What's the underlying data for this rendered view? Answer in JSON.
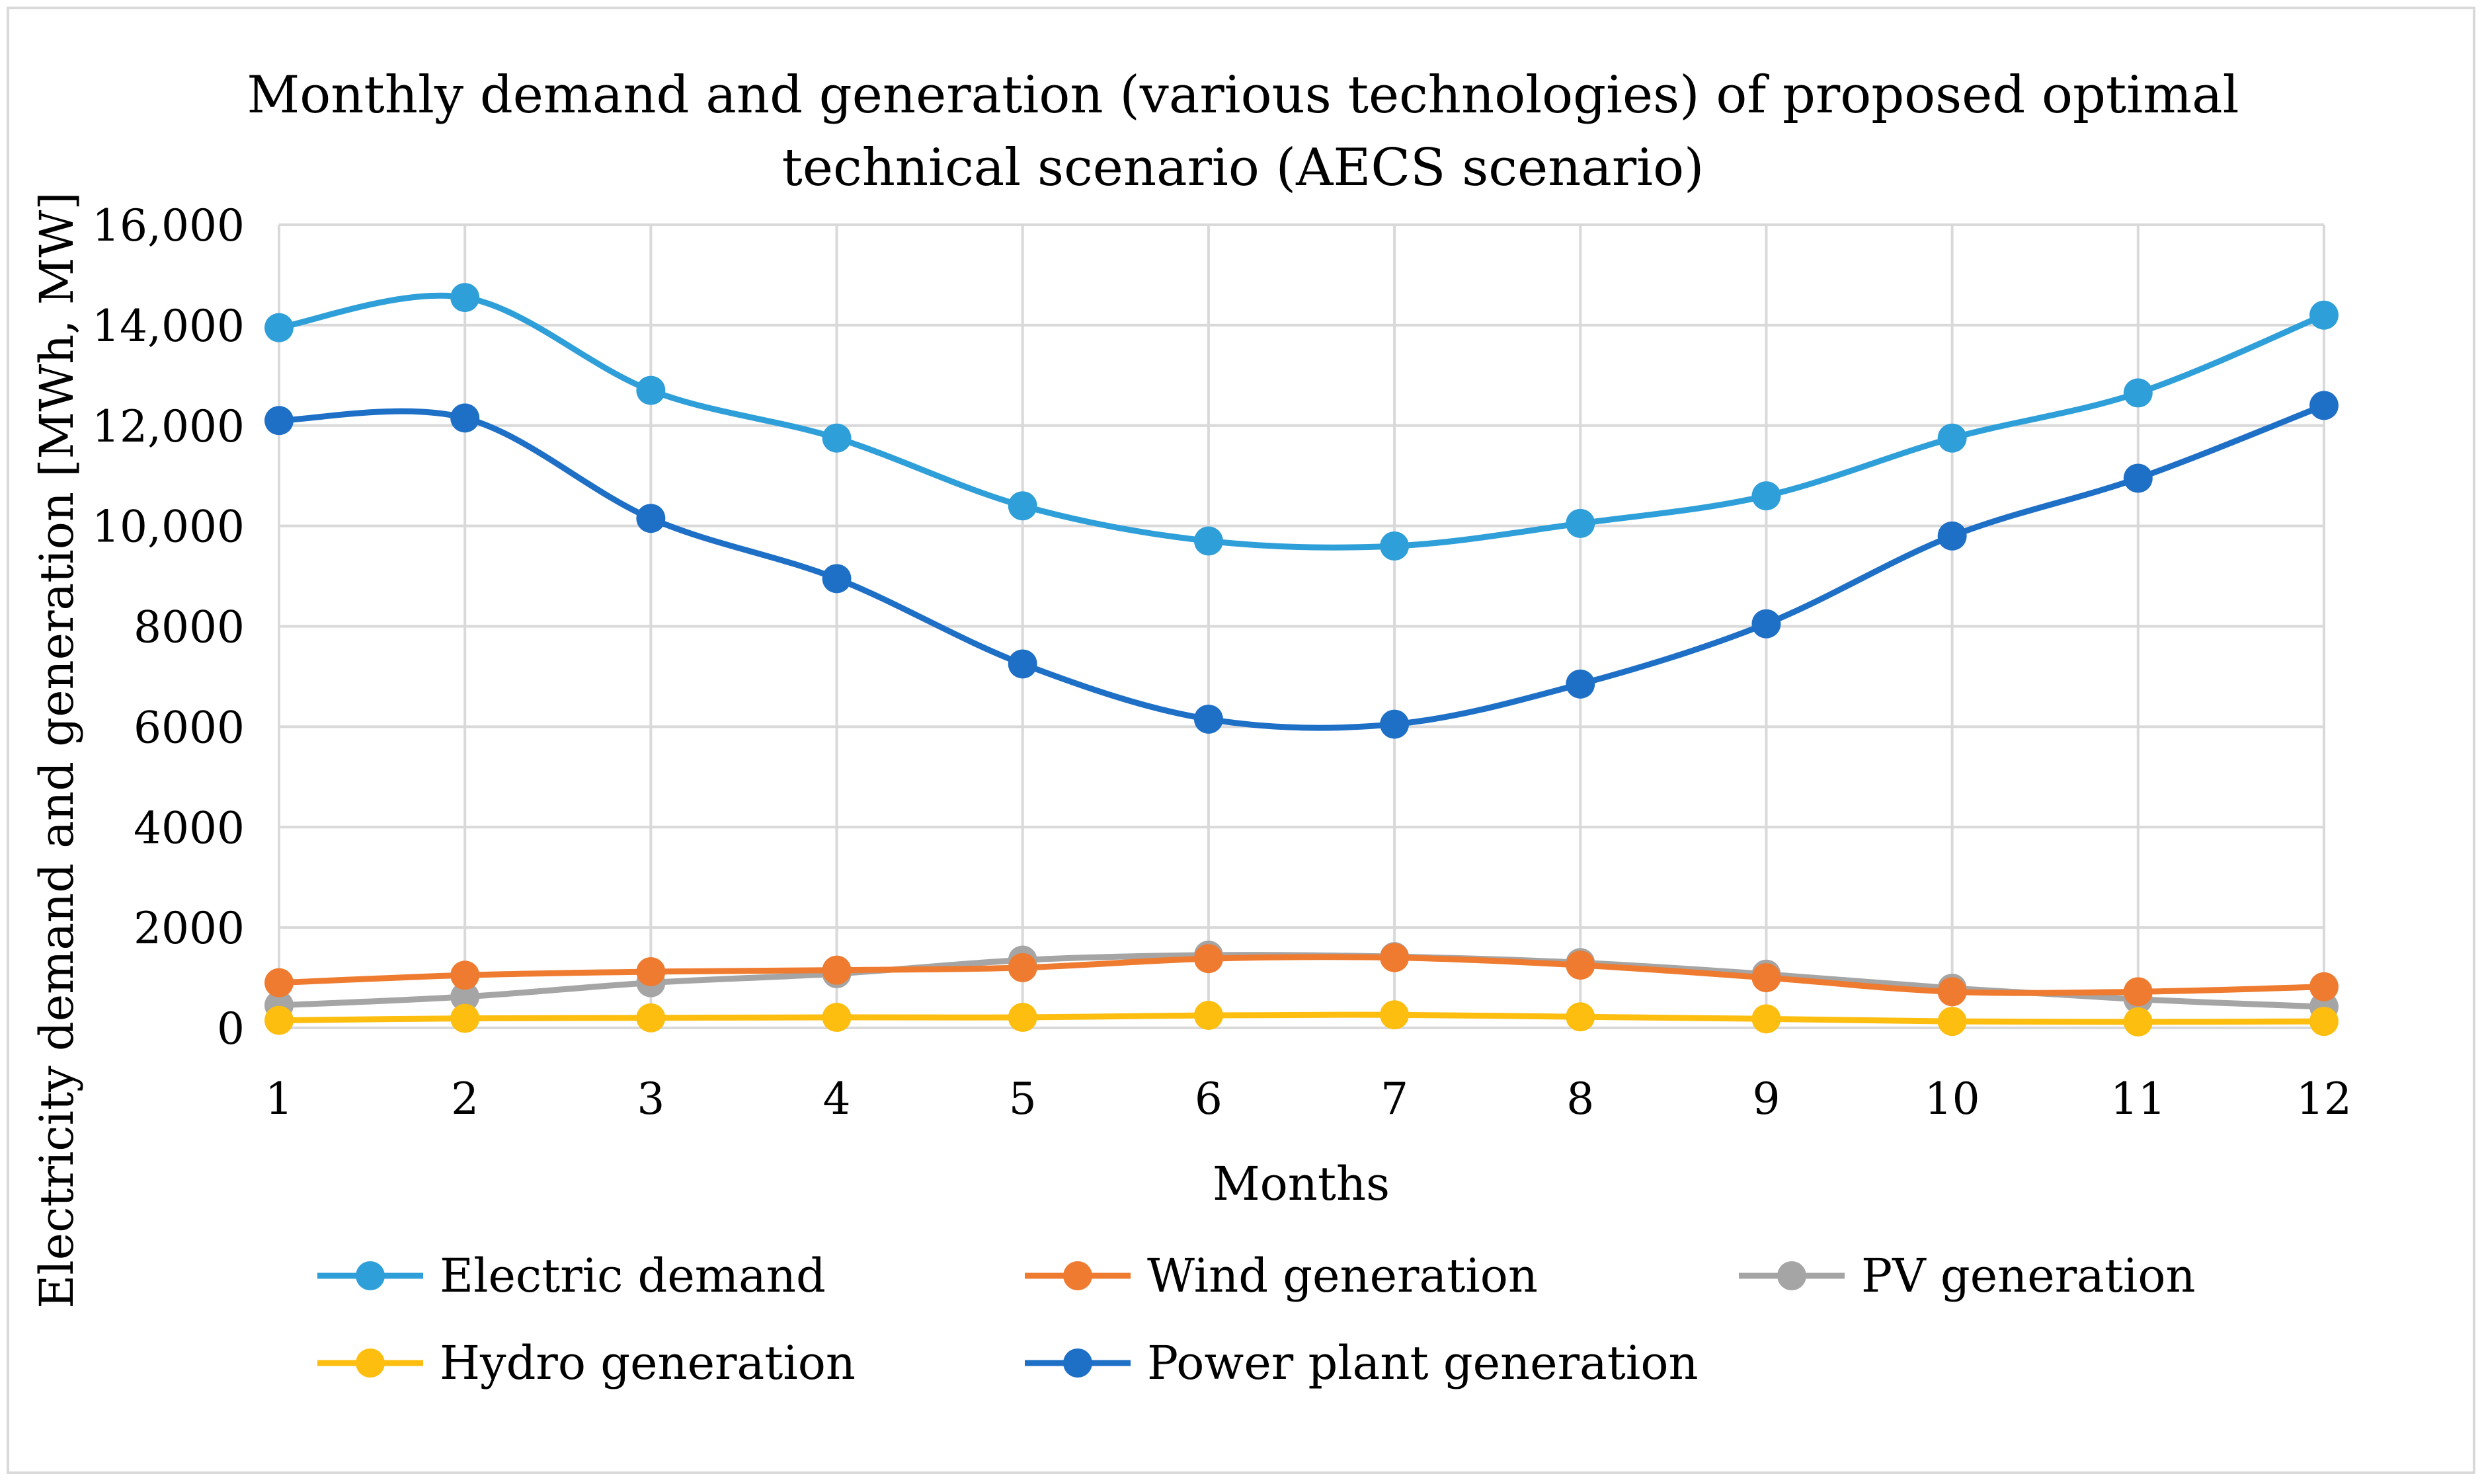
{
  "chart_data": {
    "type": "line",
    "title_lines": [
      "Monthly demand and generation (various technologies) of proposed optimal",
      "technical scenario (AECS scenario)"
    ],
    "xlabel": "Months",
    "ylabel": "Electricity demand and generation [MWh, MW]",
    "categories": [
      1,
      2,
      3,
      4,
      5,
      6,
      7,
      8,
      9,
      10,
      11,
      12
    ],
    "y_ticks": [
      0,
      2000,
      4000,
      6000,
      8000,
      10000,
      12000,
      14000,
      16000
    ],
    "y_tick_labels": [
      "0",
      "2000",
      "4000",
      "6000",
      "8000",
      "10,000",
      "12,000",
      "14,000",
      "16,000"
    ],
    "ylim": [
      0,
      16000
    ],
    "grid": true,
    "legend_position": "bottom",
    "series": [
      {
        "name": "Electric demand",
        "color": "#2e9fd8",
        "values": [
          13950,
          14550,
          12700,
          11750,
          10400,
          9700,
          9600,
          10050,
          10600,
          11750,
          12650,
          14200
        ]
      },
      {
        "name": "Wind generation",
        "color": "#ee7b30",
        "values": [
          900,
          1050,
          1120,
          1150,
          1200,
          1380,
          1400,
          1250,
          1000,
          720,
          720,
          820
        ]
      },
      {
        "name": "PV generation",
        "color": "#a5a5a5",
        "values": [
          450,
          620,
          900,
          1080,
          1350,
          1450,
          1420,
          1300,
          1070,
          790,
          570,
          420
        ]
      },
      {
        "name": "Hydro generation",
        "color": "#fdbe10",
        "values": [
          150,
          190,
          200,
          210,
          210,
          250,
          260,
          220,
          180,
          130,
          120,
          130
        ]
      },
      {
        "name": "Power plant generation",
        "color": "#1e6fc6",
        "values": [
          12100,
          12150,
          10150,
          8950,
          7250,
          6150,
          6050,
          6850,
          8050,
          9800,
          10950,
          12400
        ]
      }
    ]
  }
}
